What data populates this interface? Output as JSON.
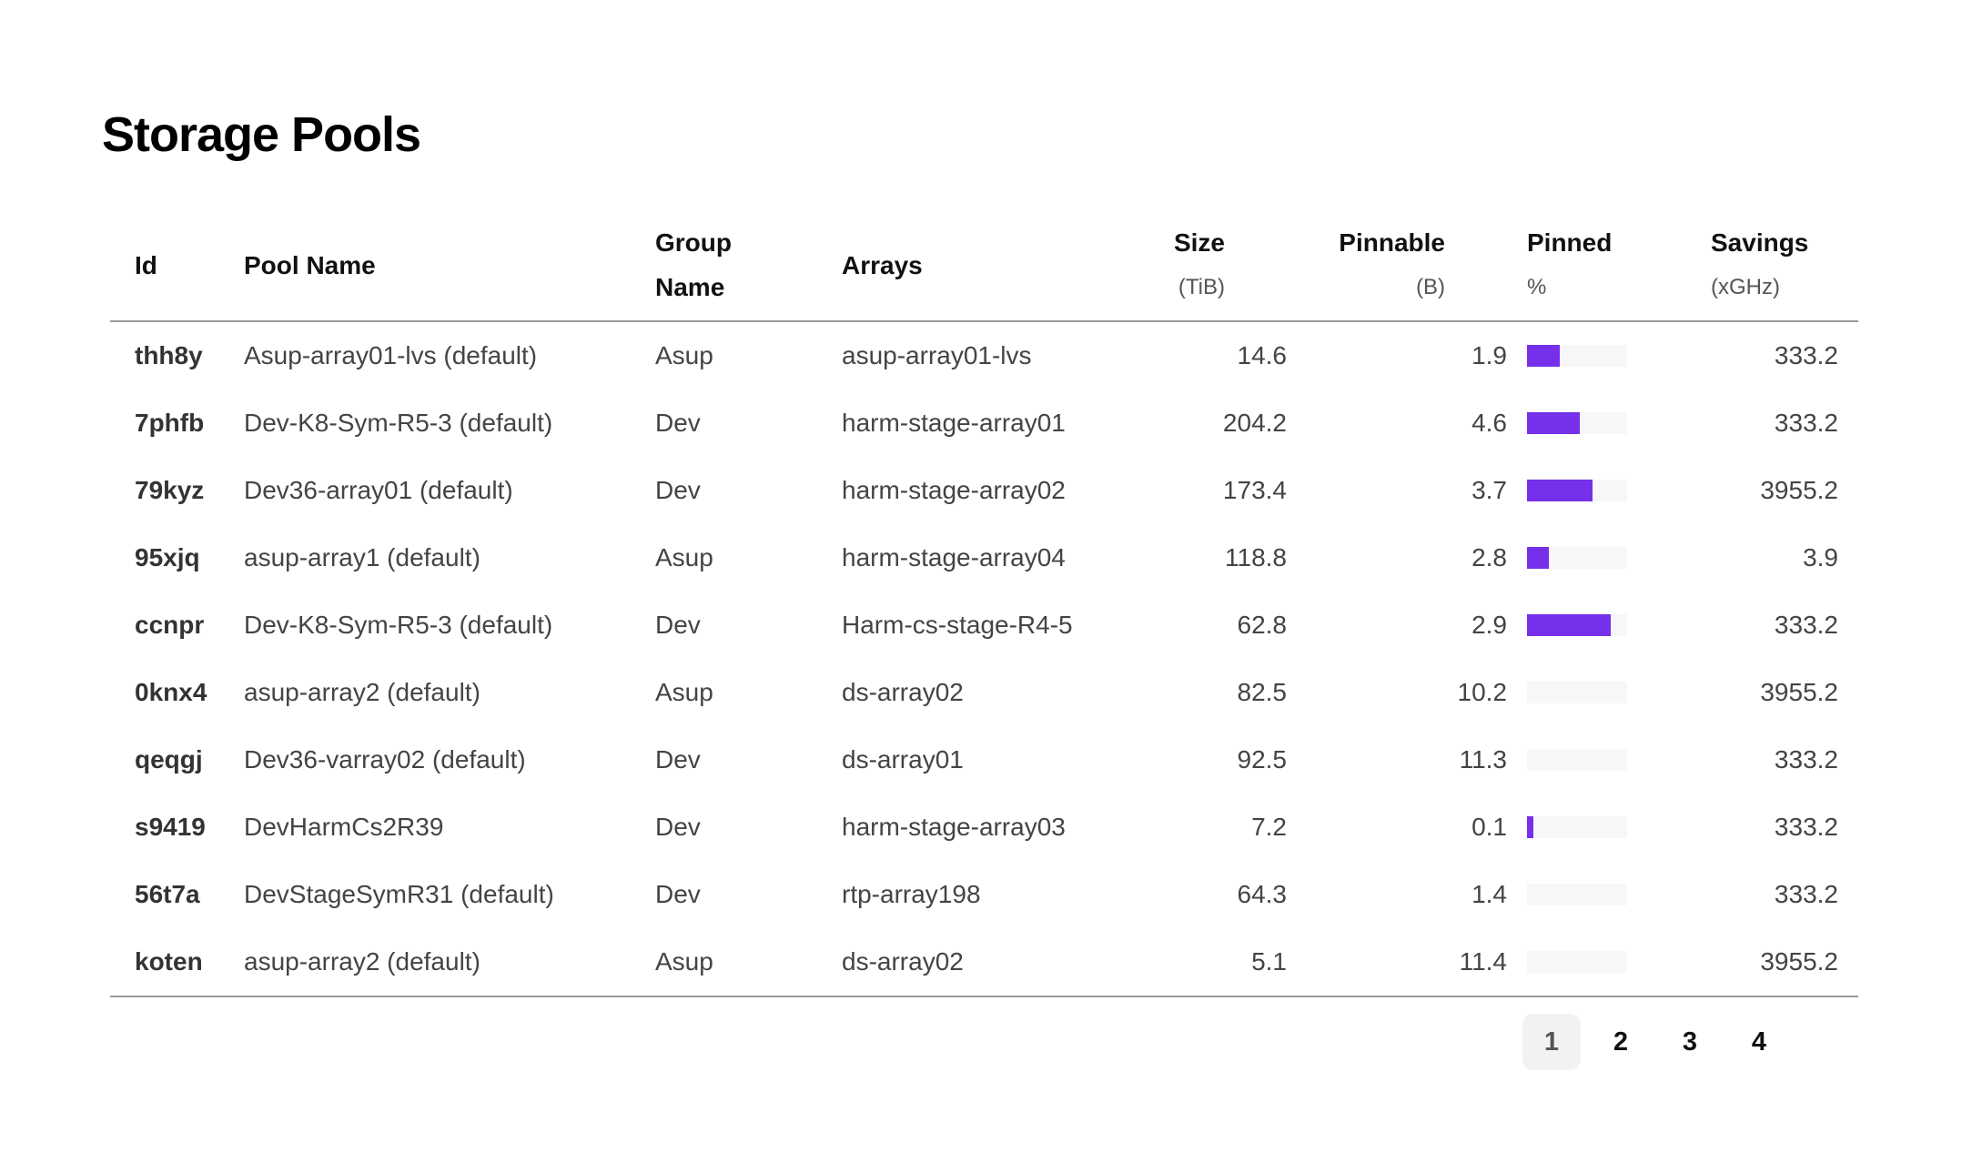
{
  "page": {
    "title": "Storage Pools"
  },
  "table": {
    "columns": [
      {
        "key": "id",
        "label": "Id",
        "unit": "",
        "align": "left"
      },
      {
        "key": "pool_name",
        "label": "Pool Name",
        "unit": "",
        "align": "left"
      },
      {
        "key": "group_name",
        "label": "Group Name",
        "unit": "",
        "align": "left",
        "wrap": true
      },
      {
        "key": "arrays",
        "label": "Arrays",
        "unit": "",
        "align": "left"
      },
      {
        "key": "size",
        "label": "Size",
        "unit": "(TiB)",
        "align": "right"
      },
      {
        "key": "pinnable",
        "label": "Pinnable",
        "unit": "(B)",
        "align": "right"
      },
      {
        "key": "pinned",
        "label": "Pinned",
        "unit": "%",
        "align": "left",
        "type": "bar"
      },
      {
        "key": "savings",
        "label": "Savings",
        "unit": "(xGHz)",
        "align": "right"
      }
    ],
    "rows": [
      {
        "id": "thh8y",
        "pool_name": "Asup-array01-lvs (default)",
        "group_name": "Asup",
        "arrays": "asup-array01-lvs",
        "size": "14.6",
        "pinnable": "1.9",
        "pinned_percent": 33,
        "savings": "333.2"
      },
      {
        "id": "7phfb",
        "pool_name": "Dev-K8-Sym-R5-3 (default)",
        "group_name": "Dev",
        "arrays": "harm-stage-array01",
        "size": "204.2",
        "pinnable": "4.6",
        "pinned_percent": 53,
        "savings": "333.2"
      },
      {
        "id": "79kyz",
        "pool_name": "Dev36-array01 (default)",
        "group_name": "Dev",
        "arrays": "harm-stage-array02",
        "size": "173.4",
        "pinnable": "3.7",
        "pinned_percent": 65,
        "savings": "3955.2"
      },
      {
        "id": "95xjq",
        "pool_name": "asup-array1 (default)",
        "group_name": "Asup",
        "arrays": "harm-stage-array04",
        "size": "118.8",
        "pinnable": "2.8",
        "pinned_percent": 22,
        "savings": "3.9"
      },
      {
        "id": "ccnpr",
        "pool_name": "Dev-K8-Sym-R5-3 (default)",
        "group_name": "Dev",
        "arrays": "Harm-cs-stage-R4-5",
        "size": "62.8",
        "pinnable": "2.9",
        "pinned_percent": 84,
        "savings": "333.2"
      },
      {
        "id": "0knx4",
        "pool_name": "asup-array2 (default)",
        "group_name": "Asup",
        "arrays": "ds-array02",
        "size": "82.5",
        "pinnable": "10.2",
        "pinned_percent": 0,
        "savings": "3955.2"
      },
      {
        "id": "qeqgj",
        "pool_name": "Dev36-varray02 (default)",
        "group_name": "Dev",
        "arrays": "ds-array01",
        "size": "92.5",
        "pinnable": "11.3",
        "pinned_percent": 0,
        "savings": "333.2"
      },
      {
        "id": "s9419",
        "pool_name": "DevHarmCs2R39",
        "group_name": "Dev",
        "arrays": "harm-stage-array03",
        "size": "7.2",
        "pinnable": "0.1",
        "pinned_percent": 6,
        "savings": "333.2"
      },
      {
        "id": "56t7a",
        "pool_name": "DevStageSymR31 (default)",
        "group_name": "Dev",
        "arrays": "rtp-array198",
        "size": "64.3",
        "pinnable": "1.4",
        "pinned_percent": 0,
        "savings": "333.2"
      },
      {
        "id": "koten",
        "pool_name": "asup-array2 (default)",
        "group_name": "Asup",
        "arrays": "ds-array02",
        "size": "5.1",
        "pinnable": "11.4",
        "pinned_percent": 0,
        "savings": "3955.2"
      }
    ]
  },
  "pagination": {
    "pages": [
      "1",
      "2",
      "3",
      "4"
    ],
    "active_page": "1",
    "prev_enabled": false,
    "next_enabled": true,
    "prev_icon": "chevron-left-icon",
    "next_icon": "chevron-right-icon"
  },
  "colors": {
    "accent_purple": "#7630ea",
    "bar_track": "#f7f7f7",
    "active_page_bg": "#f2f2f2",
    "divider": "#9a9a9a"
  }
}
